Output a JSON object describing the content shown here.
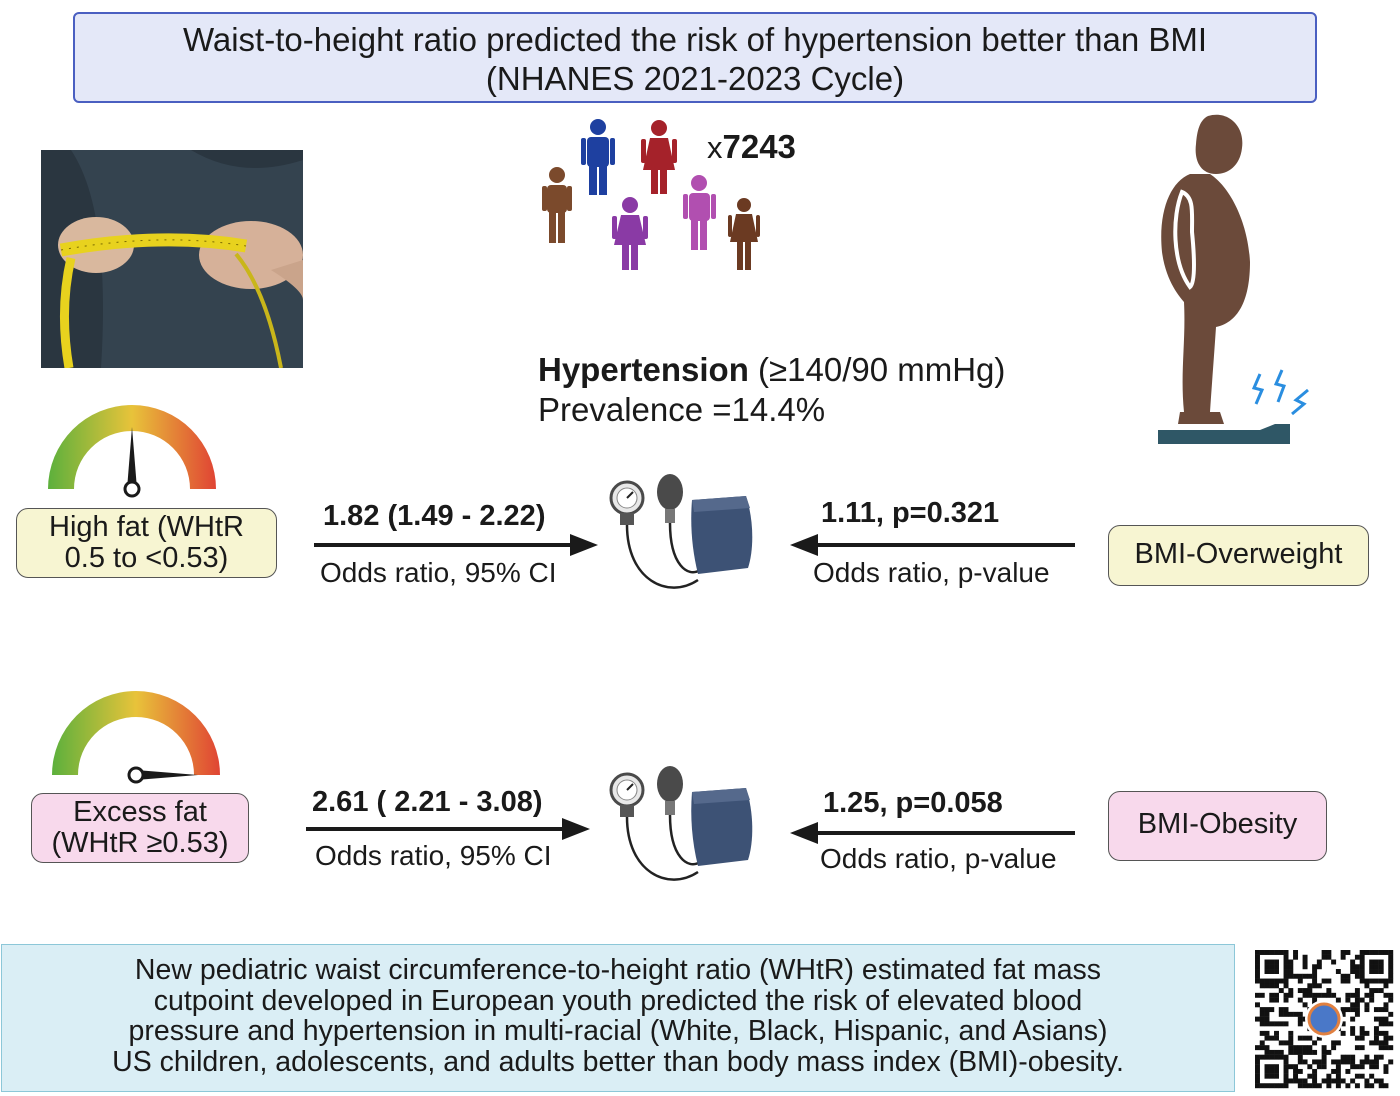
{
  "title": {
    "line1": "Waist-to-height ratio predicted the risk of hypertension better than BMI",
    "line2": "(NHANES 2021-2023 Cycle)"
  },
  "population": {
    "prefix": "x",
    "count": "7243"
  },
  "hypertension": {
    "label": "Hypertension",
    "threshold": " (≥140/90 mmHg)",
    "prevalence": "Prevalence =14.4%"
  },
  "rows": [
    {
      "whtr_label_line1": "High fat (WHtR",
      "whtr_label_line2": "0.5 to <0.53)",
      "whtr_value": "1.82 (1.49 - 2.22)",
      "whtr_sub": "Odds ratio, 95% CI",
      "bmi_value": "1.11, p=0.321",
      "bmi_sub": "Odds ratio, p-value",
      "bmi_label": "BMI-Overweight",
      "gauge_level": 0.5
    },
    {
      "whtr_label_line1": "Excess fat",
      "whtr_label_line2": "(WHtR ≥0.53)",
      "whtr_value": "2.61 ( 2.21 - 3.08)",
      "whtr_sub": "Odds ratio, 95% CI",
      "bmi_value": "1.25, p=0.058",
      "bmi_sub": "Odds ratio, p-value",
      "bmi_label": "BMI-Obesity",
      "gauge_level": 1.0
    }
  ],
  "conclusion": [
    "New pediatric waist circumference-to-height ratio (WHtR) estimated fat mass",
    "cutpoint developed in European youth predicted the risk of elevated blood",
    "pressure and hypertension in multi-racial (White, Black, Hispanic, and Asians)",
    "US children, adolescents, and adults better than body mass index (BMI)-obesity."
  ],
  "colors": {
    "title_bg": "#e4e8f8",
    "title_border": "#4a5fc1",
    "pill_yellow": "#f7f5d2",
    "pill_pink": "#f8d9ec",
    "conclusion_bg": "#daeef5",
    "cuff": "#3d5275",
    "body_silhouette": "#6b4a3a",
    "scale": "#2f5766"
  },
  "icons": [
    "tape-measure-photo",
    "people-group-icon",
    "overweight-person-on-scale-icon",
    "gauge-icon",
    "blood-pressure-monitor-icon",
    "qr-code-icon"
  ]
}
